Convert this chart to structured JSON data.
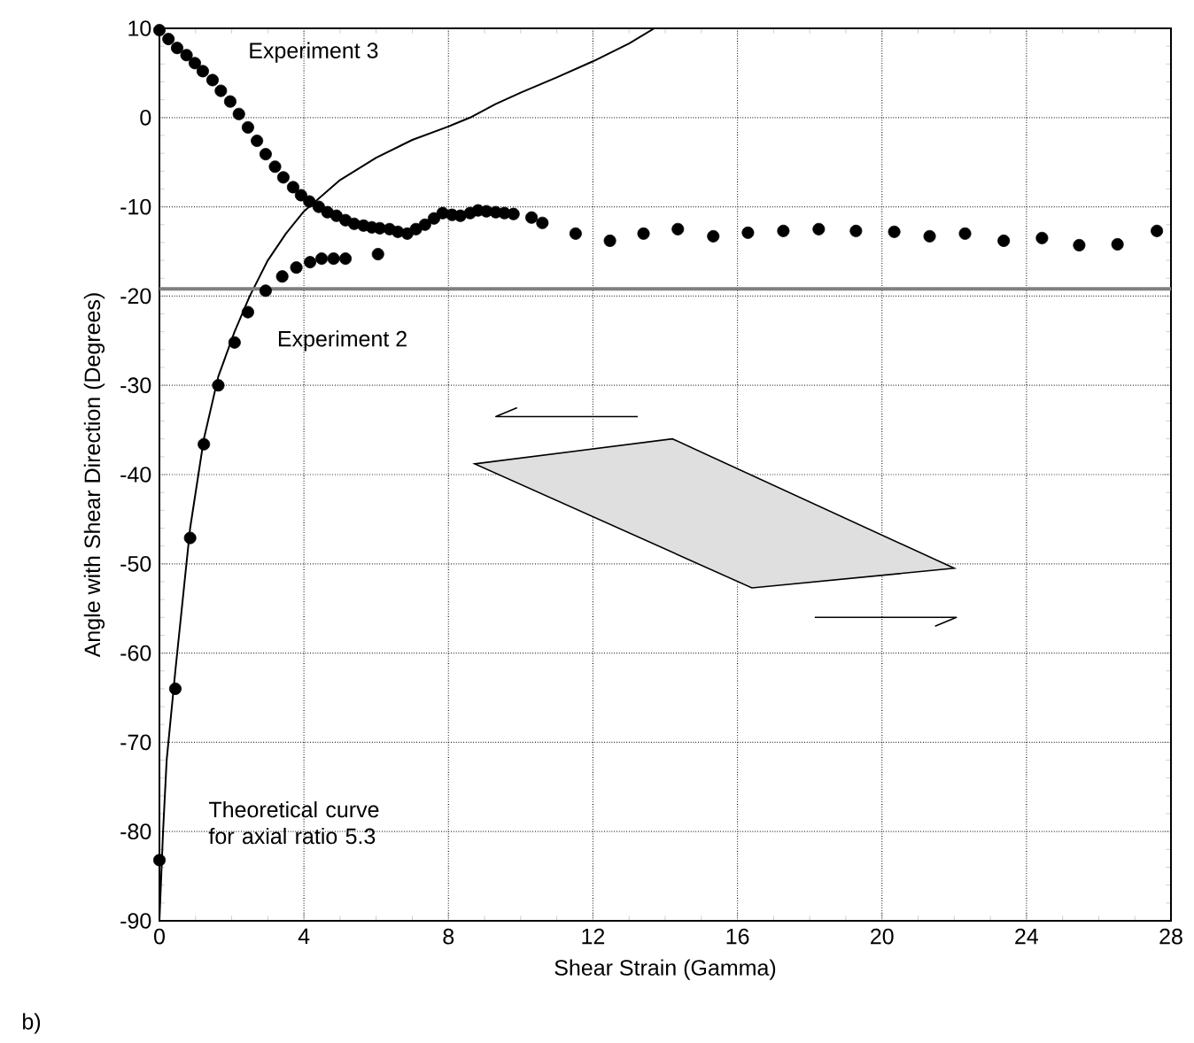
{
  "chart_data": {
    "type": "scatter",
    "xlabel": "Shear Strain (Gamma)",
    "ylabel": "Angle with Shear Direction (Degrees)",
    "xlim": [
      0,
      28
    ],
    "ylim": [
      -90,
      10
    ],
    "xticks": [
      0,
      4,
      8,
      12,
      16,
      20,
      24,
      28
    ],
    "yticks": [
      -90,
      -80,
      -70,
      -60,
      -50,
      -40,
      -30,
      -20,
      -10,
      0,
      10
    ],
    "grid": true,
    "legend": false,
    "series": [
      {
        "name": "Experiment 3",
        "marker": "circle",
        "color": "#000000",
        "x": [
          0,
          0.25,
          0.49,
          0.75,
          0.98,
          1.2,
          1.47,
          1.7,
          1.96,
          2.2,
          2.45,
          2.7,
          2.94,
          3.2,
          3.43,
          3.7,
          3.92,
          4.15,
          4.41,
          4.65,
          4.9,
          5.15,
          5.39,
          5.65,
          5.88,
          6.1,
          6.37,
          6.6,
          6.86,
          7.1,
          7.35,
          7.6,
          7.84,
          8.1,
          8.33,
          8.6,
          8.82,
          9.05,
          9.31,
          9.55,
          9.8,
          10.3,
          10.6,
          11.52,
          12.47,
          13.4,
          14.35,
          15.33,
          16.29,
          17.27,
          18.25,
          19.28,
          20.34,
          21.32,
          22.3,
          23.37,
          24.43,
          25.46,
          26.52,
          27.61
        ],
        "values": [
          9.8,
          8.8,
          7.8,
          7.0,
          6.1,
          5.2,
          4.2,
          3.0,
          1.8,
          0.4,
          -1.1,
          -2.6,
          -4.1,
          -5.5,
          -6.7,
          -7.8,
          -8.7,
          -9.4,
          -10.0,
          -10.6,
          -11.0,
          -11.5,
          -11.9,
          -12.1,
          -12.3,
          -12.4,
          -12.5,
          -12.8,
          -13.0,
          -12.5,
          -12.0,
          -11.3,
          -10.7,
          -10.9,
          -11.0,
          -10.7,
          -10.4,
          -10.5,
          -10.6,
          -10.7,
          -10.8,
          -11.2,
          -11.8,
          -13.0,
          -13.8,
          -13.0,
          -12.5,
          -13.3,
          -12.9,
          -12.7,
          -12.5,
          -12.7,
          -12.8,
          -13.3,
          -13.0,
          -13.8,
          -13.5,
          -14.3,
          -14.2,
          -12.7
        ]
      },
      {
        "name": "Experiment 2",
        "marker": "circle",
        "color": "#000000",
        "x": [
          0,
          0.44,
          0.85,
          1.23,
          1.63,
          2.08,
          2.45,
          2.94,
          3.4,
          3.79,
          4.17,
          4.49,
          4.82,
          5.15,
          6.05
        ],
        "values": [
          -83.2,
          -64.0,
          -47.1,
          -36.6,
          -30.0,
          -25.2,
          -21.8,
          -19.4,
          -17.8,
          -16.8,
          -16.2,
          -15.8,
          -15.8,
          -15.8,
          -15.3
        ]
      },
      {
        "name": "Theoretical curve for axial ratio 5.3",
        "type": "line",
        "marker": "none",
        "line_style": "solid",
        "color": "#000000",
        "x": [
          0,
          0.1,
          0.2,
          0.44,
          0.85,
          1.23,
          1.63,
          2.08,
          2.5,
          3,
          3.5,
          4,
          5,
          6,
          7,
          8,
          8.6,
          9.3,
          10,
          11,
          12,
          13,
          13.7
        ],
        "values": [
          -90,
          -80,
          -72,
          -62,
          -46,
          -36,
          -29,
          -24,
          -20,
          -16,
          -13,
          -10.5,
          -7,
          -4.5,
          -2.5,
          -1,
          0,
          1.5,
          2.8,
          4.5,
          6.3,
          8.3,
          10
        ]
      }
    ],
    "ref_lines": [
      {
        "axis": "y",
        "value": -19.2,
        "color": "#808080",
        "line_style": "solid"
      }
    ],
    "annotations": [
      "b)"
    ]
  }
}
